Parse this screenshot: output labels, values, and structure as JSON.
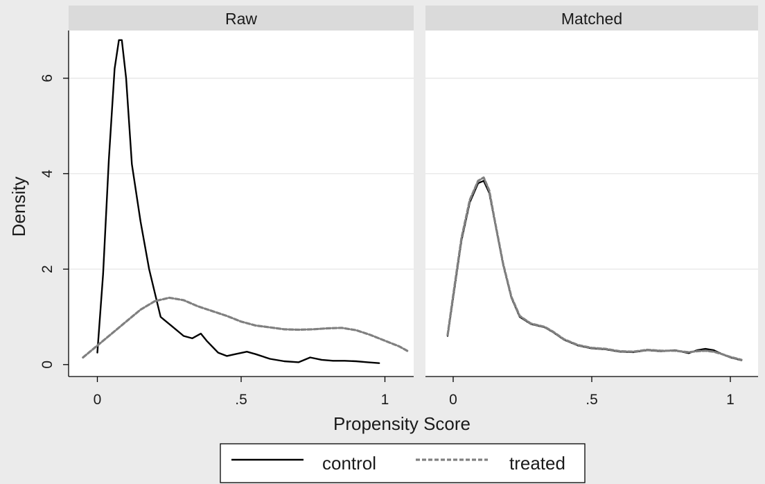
{
  "chart_data": {
    "type": "line",
    "xlabel": "Propensity Score",
    "ylabel": "Density",
    "legend_position": "bottom",
    "grid": true,
    "colors": {
      "control": "#000000",
      "treated": "#808080"
    },
    "panels": [
      {
        "title": "Raw",
        "xlim": [
          -0.1,
          1.1
        ],
        "ylim": [
          -0.25,
          7.0
        ],
        "xticks": [
          {
            "value": 0,
            "label": "0"
          },
          {
            "value": 0.5,
            "label": ".5"
          },
          {
            "value": 1,
            "label": "1"
          }
        ],
        "yticks": [
          {
            "value": 0,
            "label": "0"
          },
          {
            "value": 2,
            "label": "2"
          },
          {
            "value": 4,
            "label": "4"
          },
          {
            "value": 6,
            "label": "6"
          }
        ],
        "series": [
          {
            "name": "control",
            "style": "solid",
            "x": [
              0.0,
              0.02,
              0.04,
              0.06,
              0.075,
              0.085,
              0.1,
              0.12,
              0.15,
              0.18,
              0.2,
              0.22,
              0.23,
              0.26,
              0.3,
              0.33,
              0.36,
              0.38,
              0.42,
              0.45,
              0.48,
              0.52,
              0.55,
              0.6,
              0.65,
              0.7,
              0.74,
              0.78,
              0.82,
              0.86,
              0.9,
              0.94,
              0.98
            ],
            "y": [
              0.25,
              1.9,
              4.3,
              6.2,
              6.8,
              6.8,
              6.0,
              4.2,
              3.0,
              2.0,
              1.5,
              1.0,
              0.95,
              0.8,
              0.6,
              0.55,
              0.65,
              0.5,
              0.25,
              0.18,
              0.22,
              0.27,
              0.22,
              0.12,
              0.07,
              0.05,
              0.15,
              0.1,
              0.08,
              0.08,
              0.07,
              0.05,
              0.03
            ]
          },
          {
            "name": "treated",
            "style": "dashed",
            "x": [
              -0.05,
              0.0,
              0.05,
              0.1,
              0.15,
              0.2,
              0.25,
              0.3,
              0.35,
              0.4,
              0.45,
              0.5,
              0.55,
              0.6,
              0.65,
              0.7,
              0.75,
              0.8,
              0.85,
              0.9,
              0.95,
              1.0,
              1.05,
              1.08
            ],
            "y": [
              0.15,
              0.4,
              0.65,
              0.9,
              1.15,
              1.33,
              1.4,
              1.35,
              1.22,
              1.12,
              1.02,
              0.9,
              0.82,
              0.78,
              0.74,
              0.73,
              0.74,
              0.76,
              0.77,
              0.72,
              0.62,
              0.5,
              0.38,
              0.28
            ]
          }
        ]
      },
      {
        "title": "Matched",
        "xlim": [
          -0.1,
          1.1
        ],
        "ylim": [
          -0.25,
          7.0
        ],
        "xticks": [
          {
            "value": 0,
            "label": "0"
          },
          {
            "value": 0.5,
            "label": ".5"
          },
          {
            "value": 1,
            "label": "1"
          }
        ],
        "yticks": [],
        "series": [
          {
            "name": "control",
            "style": "solid",
            "x": [
              -0.02,
              0.0,
              0.03,
              0.06,
              0.09,
              0.11,
              0.13,
              0.15,
              0.18,
              0.21,
              0.24,
              0.28,
              0.33,
              0.36,
              0.4,
              0.45,
              0.5,
              0.55,
              0.6,
              0.65,
              0.7,
              0.75,
              0.8,
              0.85,
              0.88,
              0.91,
              0.94,
              0.97,
              1.0,
              1.04
            ],
            "y": [
              0.6,
              1.4,
              2.6,
              3.4,
              3.8,
              3.85,
              3.6,
              3.0,
              2.1,
              1.4,
              1.0,
              0.85,
              0.78,
              0.68,
              0.52,
              0.4,
              0.34,
              0.32,
              0.27,
              0.26,
              0.3,
              0.28,
              0.3,
              0.24,
              0.3,
              0.33,
              0.3,
              0.22,
              0.15,
              0.09
            ]
          },
          {
            "name": "treated",
            "style": "dashed",
            "x": [
              -0.02,
              0.0,
              0.03,
              0.06,
              0.09,
              0.11,
              0.13,
              0.15,
              0.18,
              0.21,
              0.24,
              0.28,
              0.33,
              0.36,
              0.4,
              0.45,
              0.5,
              0.55,
              0.6,
              0.65,
              0.7,
              0.75,
              0.8,
              0.85,
              0.88,
              0.91,
              0.94,
              0.97,
              1.0,
              1.04
            ],
            "y": [
              0.62,
              1.45,
              2.65,
              3.45,
              3.85,
              3.92,
              3.65,
              3.02,
              2.12,
              1.42,
              1.02,
              0.86,
              0.79,
              0.69,
              0.53,
              0.41,
              0.35,
              0.33,
              0.28,
              0.27,
              0.31,
              0.29,
              0.29,
              0.26,
              0.28,
              0.29,
              0.27,
              0.22,
              0.16,
              0.1
            ]
          }
        ]
      }
    ],
    "legend": [
      {
        "label": "control",
        "style": "solid"
      },
      {
        "label": "treated",
        "style": "dashed"
      }
    ]
  }
}
